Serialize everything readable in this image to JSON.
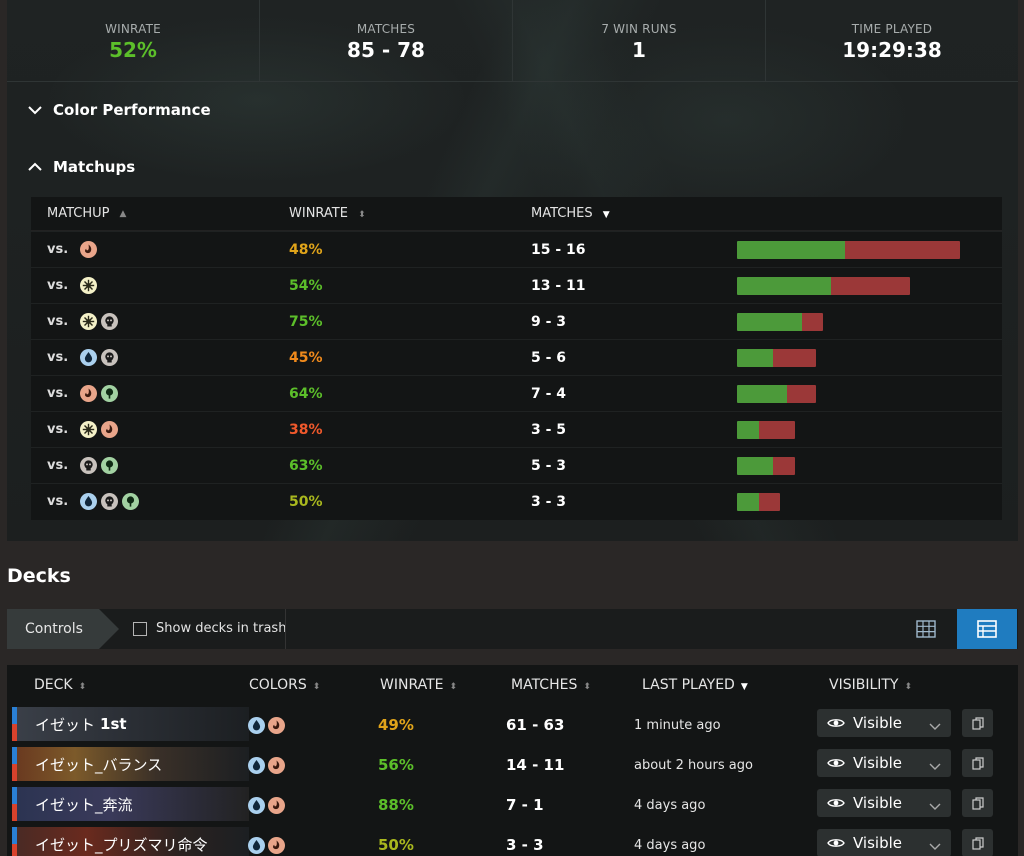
{
  "stats": [
    {
      "label": "WINRATE",
      "value": "52%",
      "accent": true
    },
    {
      "label": "MATCHES",
      "value": "85 - 78",
      "accent": false
    },
    {
      "label": "7 WIN RUNS",
      "value": "1",
      "accent": false
    },
    {
      "label": "TIME PLAYED",
      "value": "19:29:38",
      "accent": false
    }
  ],
  "sections": {
    "color_performance": "Color Performance",
    "matchups": "Matchups"
  },
  "matchups": {
    "headers": {
      "matchup": "MATCHUP",
      "winrate": "WINRATE",
      "matches": "MATCHES"
    },
    "vs_label": "vs.",
    "rows": [
      {
        "colors": [
          "red"
        ],
        "winrate": "48%",
        "matches": "15 - 16",
        "wins": 15,
        "losses": 16,
        "tone": "wr-gold"
      },
      {
        "colors": [
          "white"
        ],
        "winrate": "54%",
        "matches": "13 - 11",
        "wins": 13,
        "losses": 11,
        "tone": "wr-green"
      },
      {
        "colors": [
          "white",
          "black"
        ],
        "winrate": "75%",
        "matches": "9 - 3",
        "wins": 9,
        "losses": 3,
        "tone": "wr-green"
      },
      {
        "colors": [
          "blue",
          "black"
        ],
        "winrate": "45%",
        "matches": "5 - 6",
        "wins": 5,
        "losses": 6,
        "tone": "wr-orange"
      },
      {
        "colors": [
          "red",
          "green"
        ],
        "winrate": "64%",
        "matches": "7 - 4",
        "wins": 7,
        "losses": 4,
        "tone": "wr-green"
      },
      {
        "colors": [
          "white",
          "red"
        ],
        "winrate": "38%",
        "matches": "3 - 5",
        "wins": 3,
        "losses": 5,
        "tone": "wr-red"
      },
      {
        "colors": [
          "black",
          "green"
        ],
        "winrate": "63%",
        "matches": "5 - 3",
        "wins": 5,
        "losses": 3,
        "tone": "wr-green"
      },
      {
        "colors": [
          "blue",
          "black",
          "green"
        ],
        "winrate": "50%",
        "matches": "3 - 3",
        "wins": 3,
        "losses": 3,
        "tone": "wr-olive"
      }
    ]
  },
  "decks": {
    "title": "Decks",
    "controls_label": "Controls",
    "show_trash_label": "Show decks in trash",
    "headers": {
      "deck": "DECK",
      "colors": "COLORS",
      "winrate": "WINRATE",
      "matches": "MATCHES",
      "last_played": "LAST PLAYED",
      "visibility": "VISIBILITY"
    },
    "rows": [
      {
        "name_prefix": "イゼット ",
        "name_bold": "1st",
        "colors": [
          "blue",
          "red"
        ],
        "winrate": "49%",
        "tone": "wr-gold",
        "matches": "61 - 63",
        "last_played": "1 minute ago",
        "visibility": "Visible"
      },
      {
        "name_prefix": "イゼット_バランス",
        "name_bold": "",
        "colors": [
          "blue",
          "red"
        ],
        "winrate": "56%",
        "tone": "wr-green",
        "matches": "14 - 11",
        "last_played": "about 2 hours ago",
        "visibility": "Visible"
      },
      {
        "name_prefix": "イゼット_奔流",
        "name_bold": "",
        "colors": [
          "blue",
          "red"
        ],
        "winrate": "88%",
        "tone": "wr-green",
        "matches": "7 - 1",
        "last_played": "4 days ago",
        "visibility": "Visible"
      },
      {
        "name_prefix": "イゼット_プリズマリ命令",
        "name_bold": "",
        "colors": [
          "blue",
          "red"
        ],
        "winrate": "50%",
        "tone": "wr-olive",
        "matches": "3 - 3",
        "last_played": "4 days ago",
        "visibility": "Visible"
      }
    ]
  },
  "colors": {
    "win_bar": "#4c9a3a",
    "loss_bar": "#9b3838",
    "accent_blue": "#1f7cc0",
    "stat_green": "#5cbf2a"
  }
}
